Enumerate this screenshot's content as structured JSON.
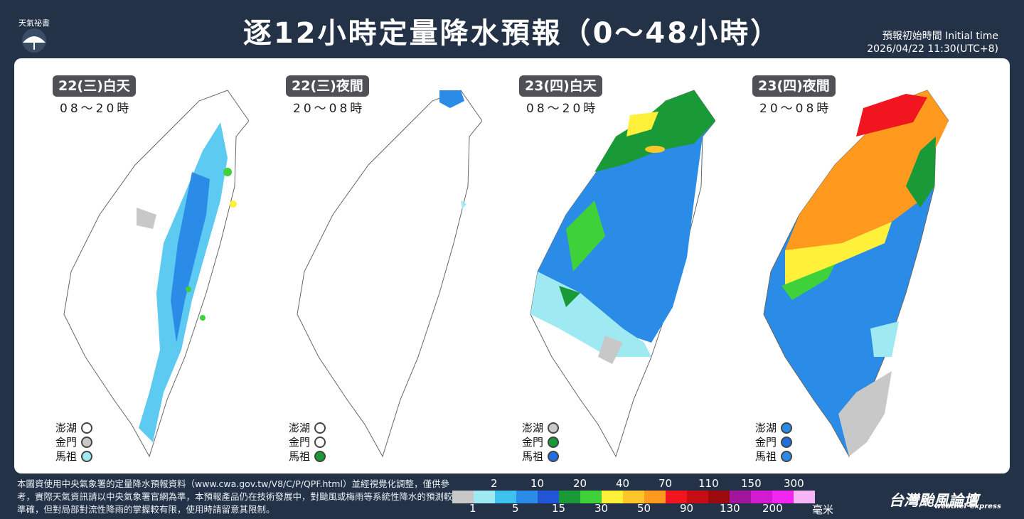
{
  "logo": {
    "text": "天氣祕書",
    "icon": "umbrella-icon"
  },
  "title": "逐12小時定量降水預報（0～48小時）",
  "initial_time": {
    "label": "預報初始時間 Initial time",
    "value": "2026/04/22  11:30(UTC+8)"
  },
  "panels": [
    {
      "day": "22(三)白天",
      "time": "08～20時",
      "penghu_color": "#ffffff",
      "kinmen_color": "#c9c9c9",
      "matsu_color": "#9fe9f2"
    },
    {
      "day": "22(三)夜間",
      "time": "20～08時",
      "penghu_color": "#ffffff",
      "kinmen_color": "#ffffff",
      "matsu_color": "#1a9a37"
    },
    {
      "day": "23(四)白天",
      "time": "08～20時",
      "penghu_color": "#c9c9c9",
      "kinmen_color": "#1a9a37",
      "matsu_color": "#1f6fe0"
    },
    {
      "day": "23(四)夜間",
      "time": "20～08時",
      "penghu_color": "#2a8ce6",
      "kinmen_color": "#1f6fe0",
      "matsu_color": "#2a8ce6"
    }
  ],
  "islands": {
    "penghu": "澎湖",
    "kinmen": "金門",
    "matsu": "馬祖"
  },
  "footnote": "本圖資使用中央氣象署的定量降水預報資料（www.cwa.gov.tw/V8/C/P/QPF.html）並經視覺化調整，僅供參考，實際天氣資訊請以中央氣象署官網為準，本預報產品仍在技術發展中，對颱風或梅雨等系統性降水的預測較準確，但對局部對流性降雨的掌握較有限，使用時請留意其限制。",
  "scale": {
    "colors": [
      "#c8c8c8",
      "#9fe9f2",
      "#3fc1ef",
      "#2a8ce6",
      "#1f55d6",
      "#1a9a37",
      "#3fd13a",
      "#fff03a",
      "#ffc62a",
      "#ff9a1f",
      "#f0151f",
      "#c60d14",
      "#9c0a10",
      "#a0159c",
      "#d21ad0",
      "#f226f0",
      "#f6b6f5"
    ],
    "upper_labels": [
      "2",
      "10",
      "20",
      "40",
      "70",
      "110",
      "150",
      "300"
    ],
    "lower_labels": [
      "1",
      "5",
      "15",
      "30",
      "50",
      "90",
      "130",
      "200"
    ],
    "unit": "毫米"
  },
  "brand": {
    "name": "台灣颱風論壇",
    "sub": "weather express"
  }
}
